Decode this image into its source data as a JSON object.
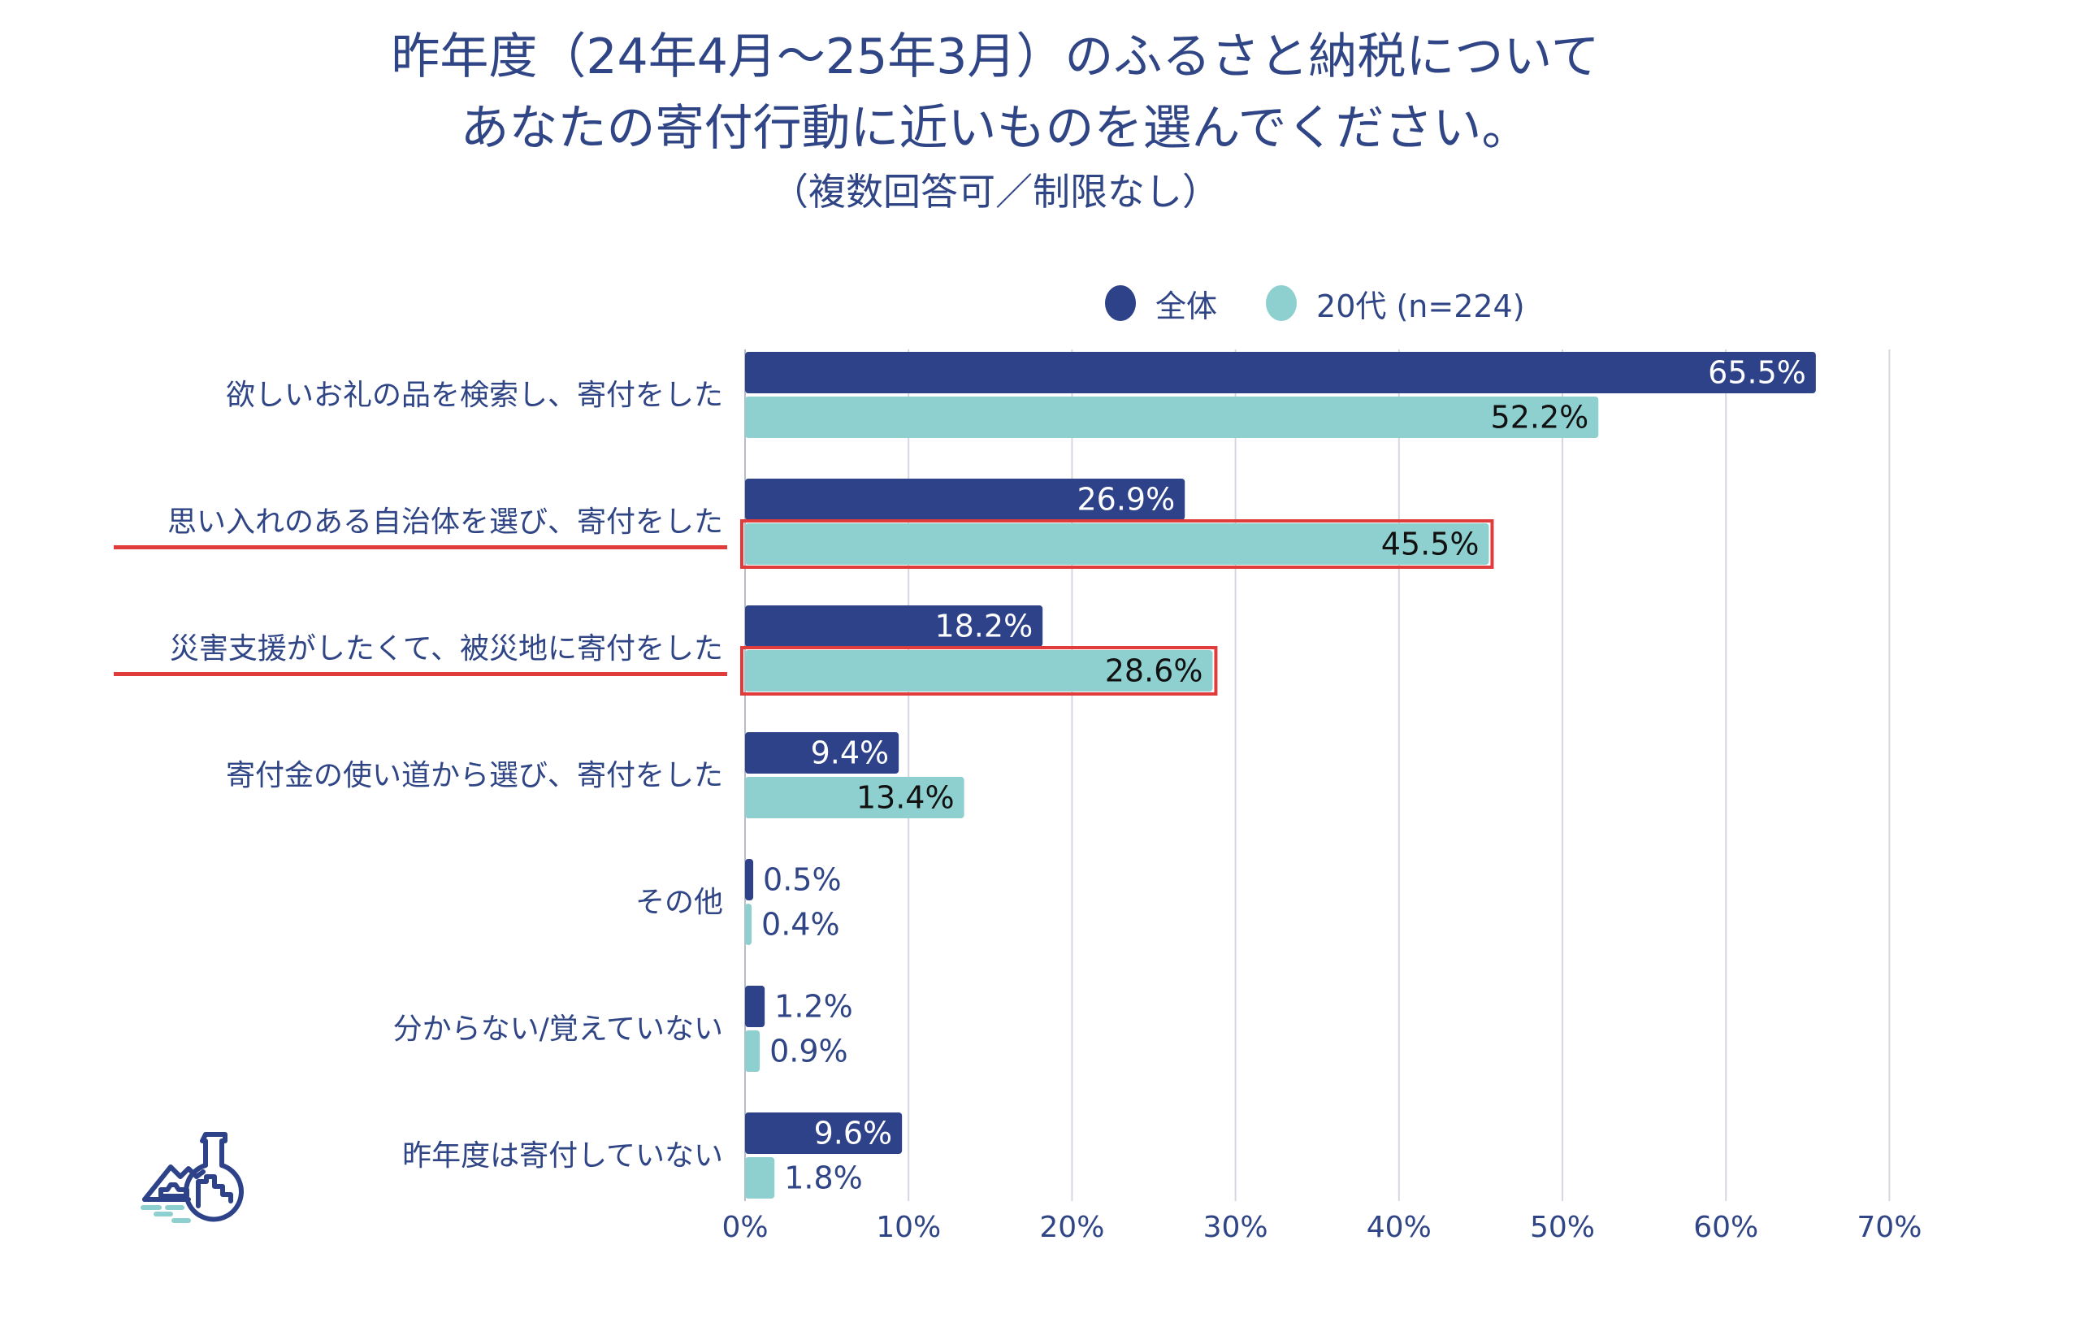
{
  "title": {
    "line1": "昨年度（24年4月～25年3月）のふるさと納税について",
    "line2": "あなたの寄付行動に近いものを選んでください。",
    "line3": "（複数回答可／制限なし）"
  },
  "legend": [
    {
      "label": "全体",
      "color": "#2e428a"
    },
    {
      "label": "20代 (n=224)",
      "color": "#8ed0cf"
    }
  ],
  "colors": {
    "series_all": "#2e428a",
    "series_20s": "#8ed0cf",
    "highlight": "#e03c3c",
    "text": "#2f4585",
    "grid": "#d4d7e0"
  },
  "logo": {
    "icon": "flask-landscape-icon"
  },
  "chart_data": {
    "type": "bar",
    "orientation": "horizontal",
    "title": "昨年度（24年4月～25年3月）のふるさと納税について あなたの寄付行動に近いものを選んでください。（複数回答可／制限なし）",
    "xlabel": "",
    "ylabel": "",
    "categories": [
      "欲しいお礼の品を検索し、寄付をした",
      "思い入れのある自治体を選び、寄付をした",
      "災害支援がしたくて、被災地に寄付をした",
      "寄付金の使い道から選び、寄付をした",
      "その他",
      "分からない/覚えていない",
      "昨年度は寄付していない"
    ],
    "series": [
      {
        "name": "全体",
        "values": [
          65.5,
          26.9,
          18.2,
          9.4,
          0.5,
          1.2,
          9.6
        ]
      },
      {
        "name": "20代 (n=224)",
        "values": [
          52.2,
          45.5,
          28.6,
          13.4,
          0.4,
          0.9,
          1.8
        ]
      }
    ],
    "value_labels": [
      [
        "65.5%",
        "26.9%",
        "18.2%",
        "9.4%",
        "0.5%",
        "1.2%",
        "9.6%"
      ],
      [
        "52.2%",
        "45.5%",
        "28.6%",
        "13.4%",
        "0.4%",
        "0.9%",
        "1.8%"
      ]
    ],
    "xlim": [
      0,
      70
    ],
    "xticks": [
      0,
      10,
      20,
      30,
      40,
      50,
      60,
      70
    ],
    "xtick_labels": [
      "0%",
      "10%",
      "20%",
      "30%",
      "40%",
      "50%",
      "60%",
      "70%"
    ],
    "grid": true,
    "legend_position": "top-right",
    "highlighted_categories": [
      1,
      2
    ],
    "highlighted_series": "20代 (n=224)"
  }
}
